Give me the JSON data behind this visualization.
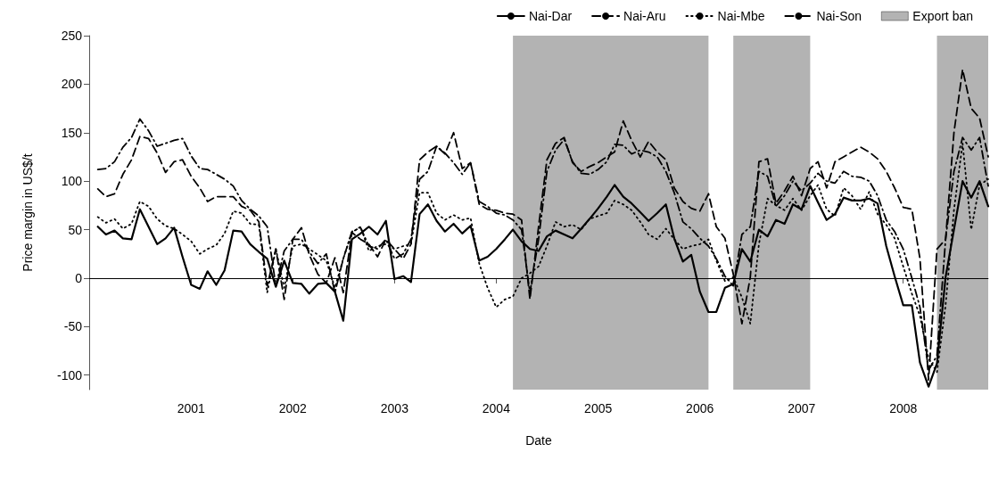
{
  "chart_data": {
    "type": "line",
    "xlabel": "Date",
    "ylabel": "Price margin in US$/t",
    "x": [
      "2000-02",
      "2000-03",
      "2000-04",
      "2000-05",
      "2000-06",
      "2000-07",
      "2000-08",
      "2000-09",
      "2000-10",
      "2000-11",
      "2000-12",
      "2001-01",
      "2001-02",
      "2001-03",
      "2001-04",
      "2001-05",
      "2001-06",
      "2001-07",
      "2001-08",
      "2001-09",
      "2001-10",
      "2001-11",
      "2001-12",
      "2002-01",
      "2002-02",
      "2002-03",
      "2002-04",
      "2002-05",
      "2002-06",
      "2002-07",
      "2002-08",
      "2002-09",
      "2002-10",
      "2002-11",
      "2002-12",
      "2003-01",
      "2003-02",
      "2003-03",
      "2003-04",
      "2003-05",
      "2003-06",
      "2003-07",
      "2003-08",
      "2003-09",
      "2003-10",
      "2003-11",
      "2003-12",
      "2004-01",
      "2004-02",
      "2004-03",
      "2004-04",
      "2004-05",
      "2004-06",
      "2004-07",
      "2004-08",
      "2004-09",
      "2004-10",
      "2004-11",
      "2004-12",
      "2005-01",
      "2005-02",
      "2005-03",
      "2005-04",
      "2005-05",
      "2005-06",
      "2005-07",
      "2005-08",
      "2005-09",
      "2005-10",
      "2005-11",
      "2005-12",
      "2006-01",
      "2006-02",
      "2006-03",
      "2006-04",
      "2006-05",
      "2006-06",
      "2006-07",
      "2006-08",
      "2006-09",
      "2006-10",
      "2006-11",
      "2006-12",
      "2007-01",
      "2007-02",
      "2007-03",
      "2007-04",
      "2007-05",
      "2007-06",
      "2007-07",
      "2007-08",
      "2007-09",
      "2007-10",
      "2007-11",
      "2007-12",
      "2008-01",
      "2008-02",
      "2008-03",
      "2008-04",
      "2008-05",
      "2008-06",
      "2008-07",
      "2008-08",
      "2008-09",
      "2008-10",
      "2008-11"
    ],
    "series": [
      {
        "name": "Nai-Dar",
        "color": "#000000",
        "line_style": "solid",
        "values": [
          53,
          45,
          49,
          41,
          40,
          71,
          53,
          35,
          41,
          52,
          22,
          -7,
          -11,
          7,
          -7,
          8,
          49,
          48,
          35,
          27,
          20,
          -9,
          18,
          -5,
          -6,
          -16,
          -6,
          -5,
          -14,
          -44,
          40,
          46,
          53,
          45,
          59,
          -1,
          2,
          -4,
          66,
          76,
          59,
          48,
          56,
          46,
          54,
          18,
          22,
          30,
          40,
          50,
          38,
          30,
          28,
          43,
          49,
          45,
          41,
          51,
          61,
          72,
          84,
          96,
          84,
          77,
          68,
          59,
          67,
          76,
          41,
          17,
          24,
          -14,
          -35,
          -35,
          -10,
          -6,
          30,
          17,
          50,
          43,
          60,
          56,
          76,
          71,
          95,
          78,
          60,
          66,
          83,
          80,
          80,
          82,
          77,
          33,
          2,
          -28,
          -28,
          -87,
          -112,
          -88,
          1,
          50,
          100,
          83,
          100,
          74
        ]
      },
      {
        "name": "Nai-Aru",
        "color": "#000000",
        "line_style": "dashed",
        "values": [
          92,
          84,
          87,
          107,
          122,
          146,
          144,
          129,
          109,
          120,
          122,
          105,
          93,
          79,
          84,
          84,
          84,
          74,
          70,
          58,
          -8,
          30,
          -22,
          40,
          52,
          24,
          4,
          -5,
          21,
          -15,
          47,
          40,
          35,
          22,
          40,
          30,
          20,
          35,
          122,
          130,
          136,
          128,
          150,
          113,
          119,
          76,
          71,
          70,
          67,
          66,
          60,
          -22,
          53,
          122,
          139,
          145,
          119,
          110,
          115,
          119,
          125,
          130,
          162,
          142,
          125,
          141,
          130,
          122,
          93,
          79,
          72,
          69,
          87,
          53,
          41,
          4,
          -47,
          1,
          120,
          123,
          77,
          90,
          105,
          85,
          113,
          120,
          93,
          120,
          125,
          130,
          135,
          130,
          123,
          110,
          93,
          73,
          71,
          20,
          -105,
          30,
          40,
          150,
          215,
          175,
          165,
          125
        ]
      },
      {
        "name": "Nai-Mbe",
        "color": "#000000",
        "line_style": "dotted",
        "values": [
          63,
          57,
          61,
          51,
          56,
          79,
          74,
          61,
          54,
          51,
          45,
          38,
          25,
          30,
          34,
          46,
          69,
          67,
          56,
          55,
          -15,
          30,
          -10,
          33,
          35,
          30,
          24,
          18,
          -10,
          20,
          47,
          53,
          28,
          33,
          35,
          30,
          33,
          35,
          88,
          88,
          67,
          60,
          65,
          60,
          62,
          15,
          -10,
          -30,
          -22,
          -19,
          0,
          5,
          12,
          33,
          58,
          53,
          55,
          50,
          61,
          64,
          67,
          80,
          76,
          70,
          58,
          45,
          40,
          51,
          40,
          30,
          33,
          35,
          40,
          18,
          -3,
          1,
          -20,
          -47,
          35,
          82,
          75,
          70,
          82,
          70,
          85,
          96,
          71,
          64,
          93,
          85,
          71,
          89,
          66,
          55,
          41,
          12,
          -16,
          -39,
          -83,
          -97,
          -28,
          70,
          139,
          50,
          96,
          102
        ]
      },
      {
        "name": "Nai-Son",
        "color": "#000000",
        "line_style": "dashdot",
        "values": [
          112,
          113,
          120,
          135,
          145,
          164,
          152,
          136,
          139,
          142,
          144,
          126,
          113,
          112,
          107,
          102,
          95,
          80,
          71,
          64,
          53,
          -8,
          28,
          40,
          40,
          27,
          15,
          25,
          -15,
          20,
          48,
          52,
          33,
          30,
          40,
          20,
          25,
          40,
          102,
          110,
          136,
          129,
          119,
          107,
          119,
          79,
          74,
          67,
          65,
          60,
          50,
          -15,
          40,
          110,
          132,
          143,
          120,
          108,
          107,
          112,
          120,
          138,
          137,
          128,
          132,
          130,
          125,
          110,
          88,
          58,
          51,
          41,
          33,
          20,
          2,
          -8,
          45,
          53,
          110,
          105,
          74,
          85,
          100,
          90,
          98,
          108,
          100,
          98,
          110,
          105,
          104,
          100,
          85,
          60,
          48,
          30,
          0,
          -30,
          -95,
          -80,
          40,
          110,
          145,
          132,
          145,
          95
        ]
      }
    ],
    "bands": [
      {
        "axis": "x",
        "from": "2004-03",
        "to": "2006-02",
        "label": "Export ban",
        "color": "#b3b3b3"
      },
      {
        "axis": "x",
        "from": "2006-05",
        "to": "2007-02",
        "color": "#b3b3b3"
      },
      {
        "axis": "x",
        "from": "2008-05",
        "to": "2008-11",
        "color": "#b3b3b3"
      }
    ],
    "ref_lines": [
      {
        "axis": "y",
        "value": 0,
        "color": "#000000"
      }
    ],
    "xlim": [
      "2000-01",
      "2008-11"
    ],
    "xticks": [
      {
        "value": "2001-01",
        "label": "2001"
      },
      {
        "value": "2002-01",
        "label": "2002"
      },
      {
        "value": "2003-01",
        "label": "2003"
      },
      {
        "value": "2004-01",
        "label": "2004"
      },
      {
        "value": "2005-01",
        "label": "2005"
      },
      {
        "value": "2006-01",
        "label": "2006"
      },
      {
        "value": "2007-01",
        "label": "2007"
      },
      {
        "value": "2008-01",
        "label": "2008"
      }
    ],
    "ylim": [
      -115,
      250
    ],
    "yticks": [
      -100,
      -50,
      0,
      50,
      100,
      150,
      200,
      250
    ],
    "grid": false,
    "legend": "top right",
    "marker": "none"
  }
}
